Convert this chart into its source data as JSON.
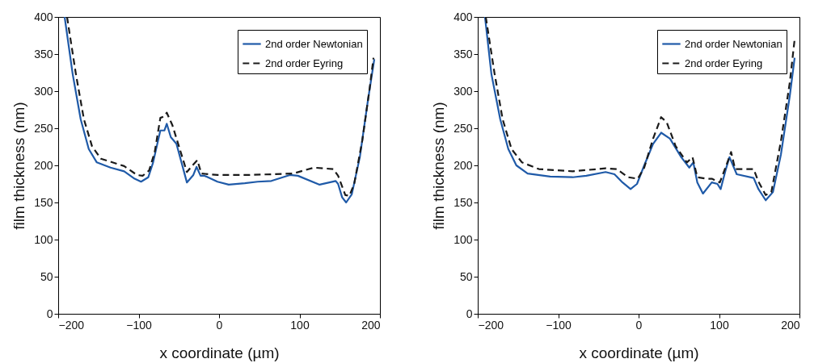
{
  "chart_data": [
    {
      "type": "line",
      "xlabel": "x coordinate (µm)",
      "ylabel": "film thickness (nm)",
      "xlim": [
        -200,
        200
      ],
      "xticks": [
        -200,
        -100,
        0,
        100,
        200
      ],
      "ylim": [
        0,
        400
      ],
      "yticks": [
        0,
        50,
        100,
        150,
        200,
        250,
        300,
        350,
        400
      ],
      "grid": false,
      "legend": "top right",
      "series": [
        {
          "name": "2nd order Newtonian",
          "color": "#1f5aa8",
          "line_style": "solid",
          "x": [
            -192,
            -182,
            -172,
            -162,
            -152,
            -135,
            -118,
            -105,
            -97,
            -88,
            -82,
            -73,
            -68,
            -65,
            -60,
            -53,
            -40,
            -32,
            -28,
            -23,
            -18,
            -2,
            12,
            32,
            48,
            65,
            88,
            98,
            125,
            145,
            148,
            153,
            158,
            165,
            175,
            185,
            193
          ],
          "values": [
            400,
            323,
            262,
            222,
            204,
            197,
            192,
            182,
            178,
            184,
            204,
            247,
            247,
            256,
            238,
            229,
            177,
            187,
            198,
            186,
            186,
            178,
            174,
            176,
            178,
            179,
            187,
            186,
            174,
            179,
            175,
            157,
            150,
            161,
            211,
            287,
            343
          ]
        },
        {
          "name": "2nd order Eyring",
          "color": "#1a1a1a",
          "line_style": "dashed",
          "x": [
            -189,
            -178,
            -168,
            -158,
            -147,
            -135,
            -118,
            -102,
            -95,
            -87,
            -80,
            -73,
            -68,
            -65,
            -58,
            -50,
            -40,
            -33,
            -27,
            -22,
            -2,
            32,
            65,
            92,
            118,
            142,
            148,
            157,
            162,
            168,
            178,
            187,
            192
          ],
          "values": [
            400,
            323,
            262,
            226,
            209,
            205,
            199,
            187,
            186,
            193,
            218,
            264,
            266,
            271,
            254,
            226,
            191,
            200,
            207,
            189,
            187,
            187,
            188,
            189,
            197,
            195,
            186,
            160,
            159,
            175,
            233,
            302,
            345
          ]
        }
      ]
    },
    {
      "type": "line",
      "xlabel": "x coordinate (µm)",
      "ylabel": "film thickness (nm)",
      "xlim": [
        -200,
        200
      ],
      "xticks": [
        -200,
        -100,
        0,
        100,
        200
      ],
      "ylim": [
        0,
        400
      ],
      "yticks": [
        0,
        50,
        100,
        150,
        200,
        250,
        300,
        350,
        400
      ],
      "grid": false,
      "legend": "top right",
      "series": [
        {
          "name": "2nd order Newtonian",
          "color": "#1f5aa8",
          "line_style": "solid",
          "x": [
            -191,
            -183,
            -172,
            -162,
            -152,
            -138,
            -110,
            -82,
            -65,
            -41,
            -30,
            -20,
            -10,
            -2,
            7,
            18,
            28,
            39,
            53,
            63,
            68,
            73,
            80,
            91,
            98,
            102,
            108,
            113,
            122,
            143,
            149,
            158,
            167,
            177,
            188,
            194
          ],
          "values": [
            400,
            323,
            262,
            222,
            200,
            189,
            185,
            184,
            186,
            191,
            188,
            177,
            168,
            175,
            200,
            229,
            244,
            236,
            211,
            197,
            204,
            177,
            162,
            177,
            175,
            168,
            193,
            211,
            188,
            183,
            168,
            153,
            164,
            215,
            294,
            345
          ]
        },
        {
          "name": "2nd order Eyring",
          "color": "#1a1a1a",
          "line_style": "dashed",
          "x": [
            -190,
            -179,
            -169,
            -158,
            -145,
            -124,
            -82,
            -41,
            -27,
            -13,
            -1,
            7,
            18,
            28,
            35,
            46,
            60,
            67,
            73,
            84,
            91,
            101,
            108,
            115,
            120,
            132,
            143,
            149,
            158,
            165,
            177,
            188,
            194
          ],
          "values": [
            400,
            323,
            262,
            222,
            204,
            195,
            192,
            196,
            195,
            184,
            182,
            197,
            236,
            265,
            258,
            226,
            204,
            211,
            184,
            182,
            182,
            177,
            197,
            218,
            195,
            195,
            195,
            178,
            160,
            164,
            233,
            312,
            370
          ]
        }
      ]
    }
  ]
}
